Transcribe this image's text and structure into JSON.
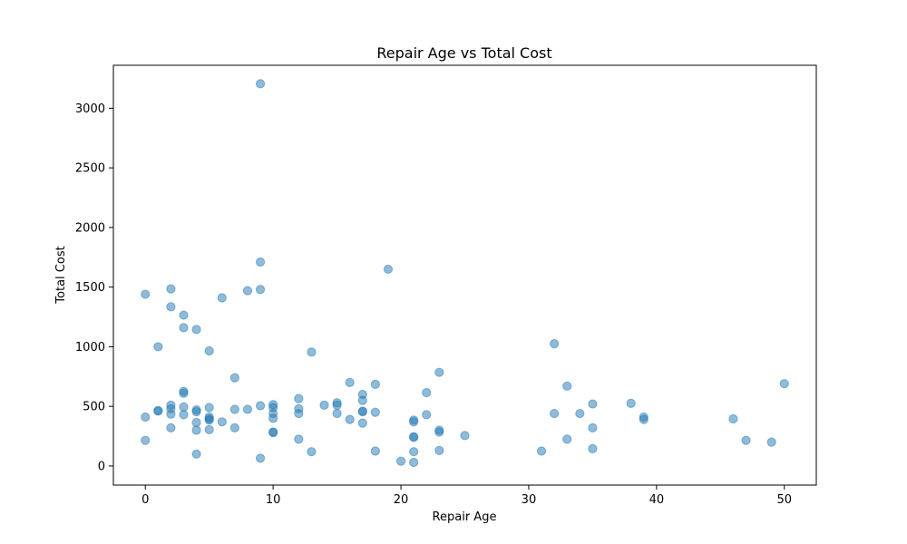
{
  "chart_data": {
    "type": "scatter",
    "title": "Repair Age vs Total Cost",
    "xlabel": "Repair Age",
    "ylabel": "Total Cost",
    "xlim": [
      -2.5,
      52.5
    ],
    "ylim": [
      -160,
      3360
    ],
    "xticks": [
      0,
      10,
      20,
      30,
      40,
      50
    ],
    "yticks": [
      0,
      500,
      1000,
      1500,
      2000,
      2500,
      3000
    ],
    "grid": false,
    "point_color": "#1f77b4",
    "point_alpha": 0.5,
    "points": [
      [
        9,
        3205
      ],
      [
        9,
        1710
      ],
      [
        19,
        1650
      ],
      [
        2,
        1485
      ],
      [
        9,
        1480
      ],
      [
        8,
        1470
      ],
      [
        0,
        1440
      ],
      [
        6,
        1410
      ],
      [
        2,
        1335
      ],
      [
        3,
        1265
      ],
      [
        3,
        1160
      ],
      [
        4,
        1145
      ],
      [
        32,
        1025
      ],
      [
        1,
        1000
      ],
      [
        5,
        965
      ],
      [
        13,
        955
      ],
      [
        23,
        785
      ],
      [
        7,
        740
      ],
      [
        16,
        700
      ],
      [
        18,
        685
      ],
      [
        50,
        690
      ],
      [
        33,
        670
      ],
      [
        3,
        625
      ],
      [
        3,
        610
      ],
      [
        22,
        615
      ],
      [
        17,
        600
      ],
      [
        12,
        565
      ],
      [
        17,
        550
      ],
      [
        15,
        530
      ],
      [
        38,
        525
      ],
      [
        2,
        510
      ],
      [
        10,
        515
      ],
      [
        14,
        510
      ],
      [
        35,
        520
      ],
      [
        15,
        510
      ],
      [
        9,
        505
      ],
      [
        3,
        495
      ],
      [
        5,
        490
      ],
      [
        10,
        490
      ],
      [
        2,
        480
      ],
      [
        12,
        480
      ],
      [
        7,
        475
      ],
      [
        8,
        475
      ],
      [
        4,
        470
      ],
      [
        1,
        465
      ],
      [
        1,
        460
      ],
      [
        17,
        460
      ],
      [
        4,
        455
      ],
      [
        18,
        450
      ],
      [
        17,
        455
      ],
      [
        15,
        440
      ],
      [
        32,
        440
      ],
      [
        34,
        440
      ],
      [
        2,
        435
      ],
      [
        3,
        430
      ],
      [
        12,
        440
      ],
      [
        10,
        440
      ],
      [
        22,
        430
      ],
      [
        0,
        410
      ],
      [
        5,
        410
      ],
      [
        39,
        410
      ],
      [
        5,
        395
      ],
      [
        10,
        400
      ],
      [
        39,
        390
      ],
      [
        46,
        395
      ],
      [
        16,
        390
      ],
      [
        5,
        385
      ],
      [
        21,
        385
      ],
      [
        21,
        370
      ],
      [
        4,
        365
      ],
      [
        6,
        370
      ],
      [
        17,
        360
      ],
      [
        2,
        320
      ],
      [
        7,
        320
      ],
      [
        35,
        320
      ],
      [
        5,
        305
      ],
      [
        4,
        300
      ],
      [
        23,
        300
      ],
      [
        10,
        285
      ],
      [
        10,
        280
      ],
      [
        23,
        285
      ],
      [
        25,
        255
      ],
      [
        21,
        245
      ],
      [
        21,
        240
      ],
      [
        33,
        225
      ],
      [
        0,
        215
      ],
      [
        12,
        225
      ],
      [
        47,
        215
      ],
      [
        49,
        200
      ],
      [
        35,
        145
      ],
      [
        23,
        130
      ],
      [
        31,
        125
      ],
      [
        18,
        125
      ],
      [
        13,
        120
      ],
      [
        21,
        120
      ],
      [
        4,
        100
      ],
      [
        9,
        65
      ],
      [
        20,
        40
      ],
      [
        21,
        30
      ]
    ]
  }
}
